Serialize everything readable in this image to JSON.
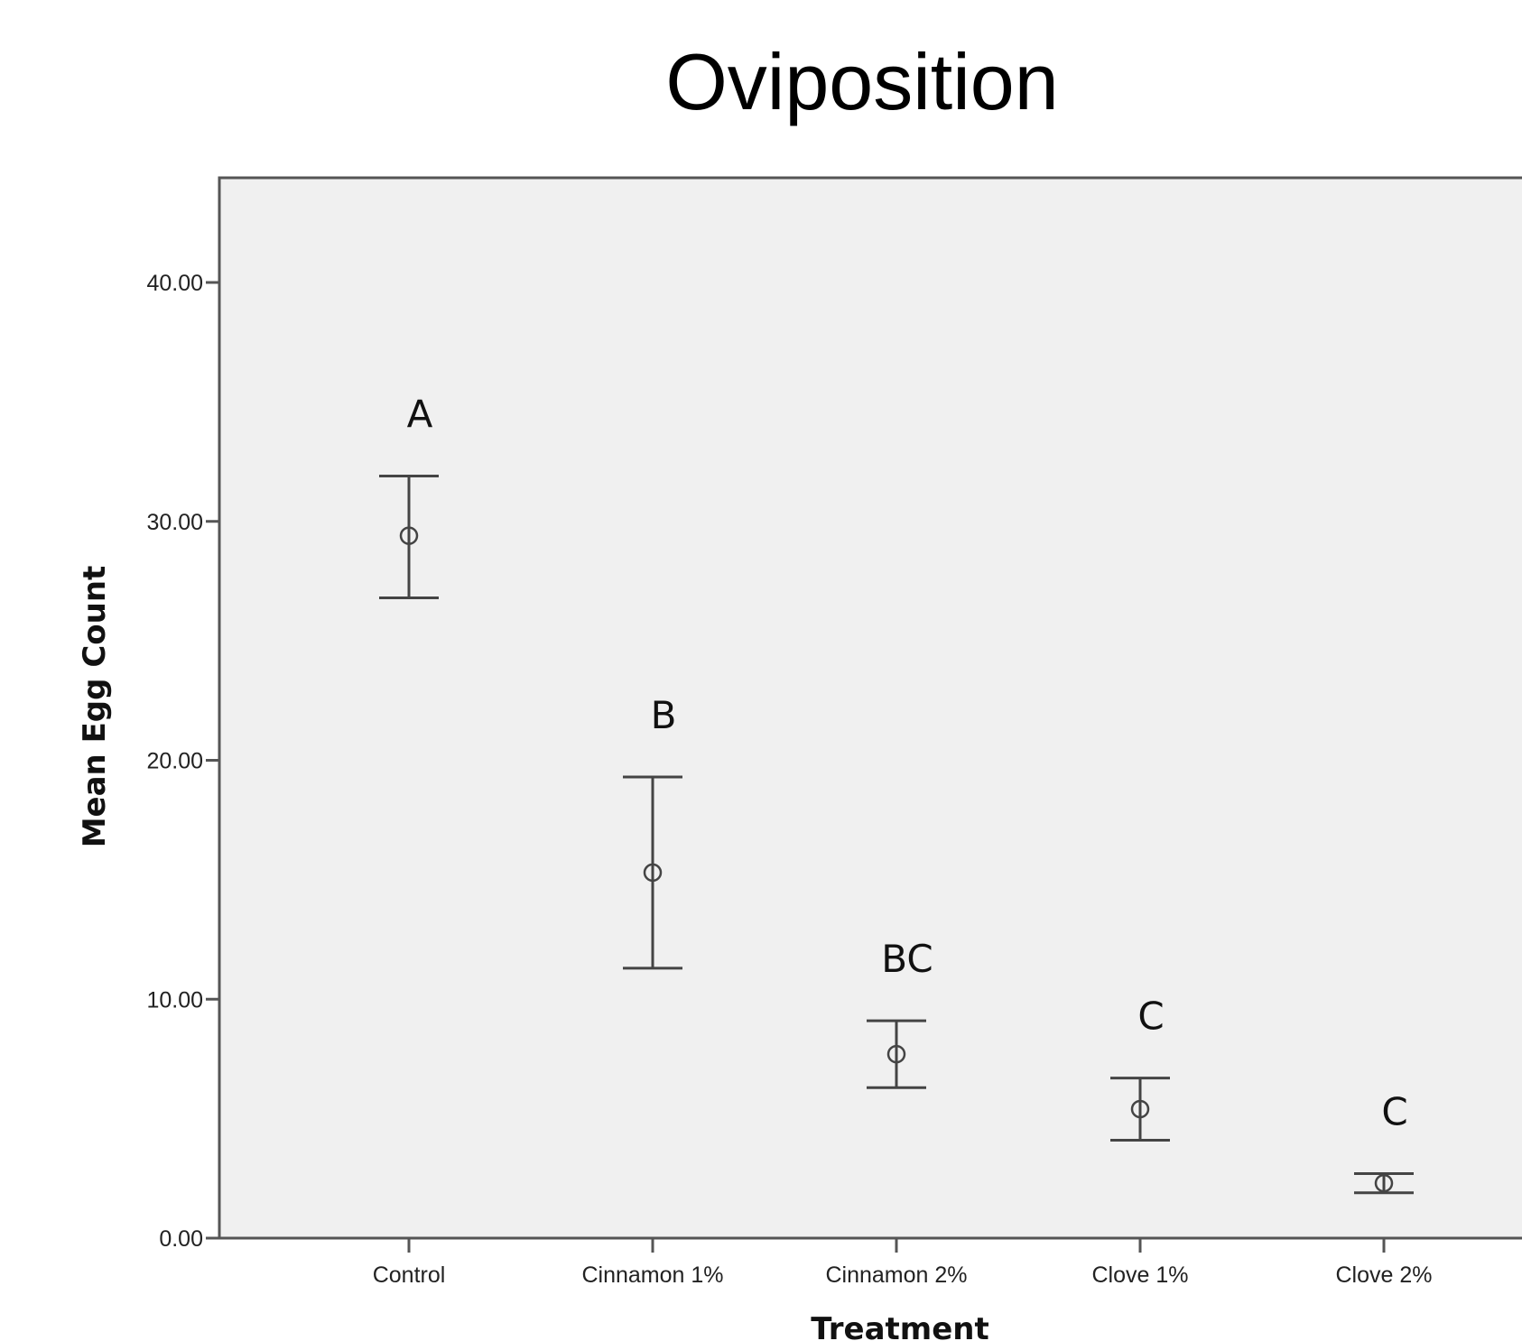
{
  "chart_data": {
    "type": "scatter",
    "title": "Oviposition",
    "xlabel": "Treatment",
    "ylabel": "Mean Egg Count",
    "ylim": [
      0,
      40
    ],
    "yticks": [
      "0.00",
      "10.00",
      "20.00",
      "30.00",
      "40.00"
    ],
    "grid": false,
    "categories": [
      "Control",
      "Cinnamon 1%",
      "Cinnamon 2%",
      "Clove 1%",
      "Clove 2%"
    ],
    "series": [
      {
        "values": [
          29.4,
          15.3,
          7.7,
          5.4,
          2.3
        ],
        "error_high": [
          31.9,
          19.3,
          9.1,
          6.7,
          2.7
        ],
        "error_low": [
          26.8,
          11.3,
          6.3,
          4.1,
          1.9
        ]
      }
    ],
    "annotations": [
      "A",
      "B",
      "BC",
      "C",
      "C"
    ],
    "colors": {
      "plot_background": "#f0f0f0",
      "axis": "#555555",
      "marks": "#444444"
    }
  }
}
